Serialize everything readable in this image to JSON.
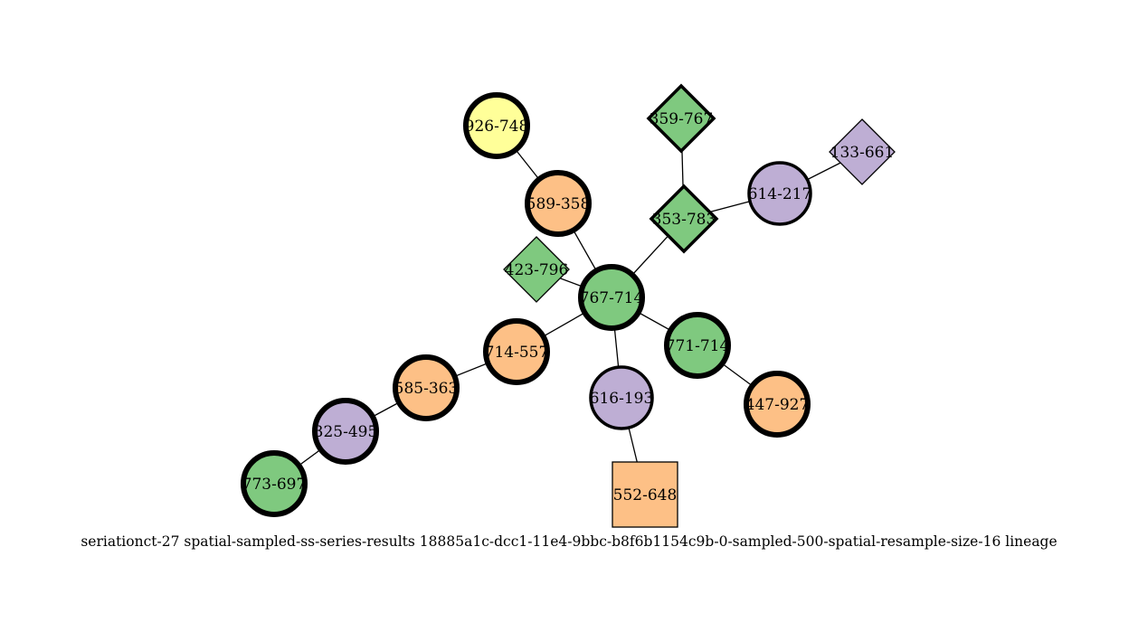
{
  "graph": {
    "caption": "seriationct-27  spatial-sampled-ss-series-results  18885a1c-dcc1-11e4-9bbc-b8f6b1154c9b-0-sampled-500-spatial-resample-size-16  lineage",
    "palette": {
      "green": "#7fc97f",
      "purple": "#beaed4",
      "orange": "#fdc086",
      "yellow": "#ffff99"
    },
    "nodes": [
      {
        "id": "926-748",
        "label": "926-748",
        "shape": "circle",
        "color": "yellow",
        "border": "thick"
      },
      {
        "id": "589-358",
        "label": "589-358",
        "shape": "circle",
        "color": "orange",
        "border": "thick"
      },
      {
        "id": "359-767",
        "label": "359-767",
        "shape": "diamond",
        "color": "green",
        "border": "medium"
      },
      {
        "id": "133-661",
        "label": "133-661",
        "shape": "diamond",
        "color": "purple",
        "border": "thin"
      },
      {
        "id": "614-217",
        "label": "614-217",
        "shape": "circle",
        "color": "purple",
        "border": "medium"
      },
      {
        "id": "353-783",
        "label": "353-783",
        "shape": "diamond",
        "color": "green",
        "border": "medium"
      },
      {
        "id": "423-796",
        "label": "423-796",
        "shape": "diamond",
        "color": "green",
        "border": "thin"
      },
      {
        "id": "767-714",
        "label": "767-714",
        "shape": "circle",
        "color": "green",
        "border": "thick"
      },
      {
        "id": "714-557",
        "label": "714-557",
        "shape": "circle",
        "color": "orange",
        "border": "thick"
      },
      {
        "id": "771-714",
        "label": "771-714",
        "shape": "circle",
        "color": "green",
        "border": "thick"
      },
      {
        "id": "585-363",
        "label": "585-363",
        "shape": "circle",
        "color": "orange",
        "border": "thick"
      },
      {
        "id": "616-193",
        "label": "616-193",
        "shape": "circle",
        "color": "purple",
        "border": "medium"
      },
      {
        "id": "447-927",
        "label": "447-927",
        "shape": "circle",
        "color": "orange",
        "border": "thick"
      },
      {
        "id": "325-495",
        "label": "325-495",
        "shape": "circle",
        "color": "purple",
        "border": "thick"
      },
      {
        "id": "773-697",
        "label": "773-697",
        "shape": "circle",
        "color": "green",
        "border": "thick"
      },
      {
        "id": "552-648",
        "label": "552-648",
        "shape": "square",
        "color": "orange",
        "border": "thin"
      }
    ],
    "edges": [
      [
        "926-748",
        "589-358"
      ],
      [
        "589-358",
        "767-714"
      ],
      [
        "359-767",
        "353-783"
      ],
      [
        "353-783",
        "614-217"
      ],
      [
        "614-217",
        "133-661"
      ],
      [
        "353-783",
        "767-714"
      ],
      [
        "423-796",
        "767-714"
      ],
      [
        "767-714",
        "714-557"
      ],
      [
        "767-714",
        "771-714"
      ],
      [
        "767-714",
        "616-193"
      ],
      [
        "714-557",
        "585-363"
      ],
      [
        "585-363",
        "325-495"
      ],
      [
        "325-495",
        "773-697"
      ],
      [
        "771-714",
        "447-927"
      ],
      [
        "616-193",
        "552-648"
      ]
    ]
  }
}
